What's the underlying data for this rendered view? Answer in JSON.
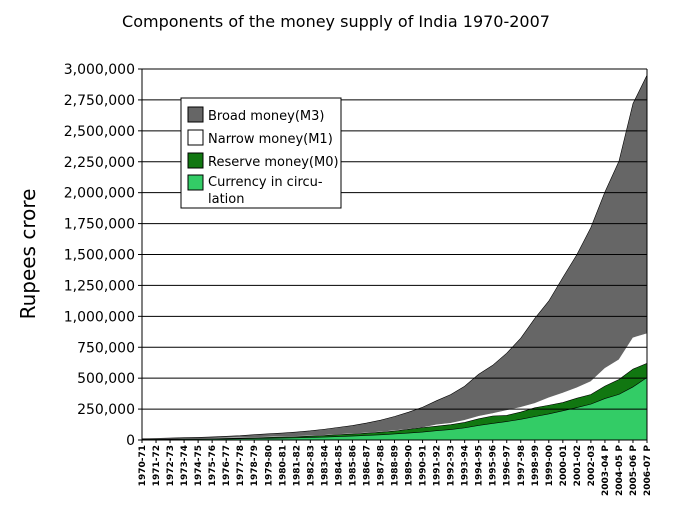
{
  "chart_data": {
    "type": "area",
    "title": "Components of the money supply of India 1970-2007",
    "ylabel": "Rupees crore",
    "xlabel": "",
    "ylim": [
      0,
      3000000
    ],
    "yticks": [
      "0",
      "250,000",
      "500,000",
      "750,000",
      "1,000,000",
      "1,250,000",
      "1,500,000",
      "1,750,000",
      "2,000,000",
      "2,250,000",
      "2,500,000",
      "2,750,000",
      "3,000,000"
    ],
    "ytick_values": [
      0,
      250000,
      500000,
      750000,
      1000000,
      1250000,
      1500000,
      1750000,
      2000000,
      2250000,
      2500000,
      2750000,
      3000000
    ],
    "grid": true,
    "legend_placement": "top-left",
    "categories": [
      "1970-71",
      "1971-72",
      "1972-73",
      "1973-74",
      "1974-75",
      "1975-76",
      "1976-77",
      "1977-78",
      "1978-79",
      "1979-80",
      "1980-81",
      "1981-82",
      "1982-83",
      "1983-84",
      "1984-85",
      "1985-86",
      "1986-87",
      "1987-88",
      "1988-89",
      "1989-90",
      "1990-91",
      "1991-92",
      "1992-93",
      "1993-94",
      "1994-95",
      "1995-96",
      "1996-97",
      "1997-98",
      "1998-99",
      "1999-00",
      "2000-01",
      "2001-02",
      "2002-03",
      "2003-04 P",
      "2004-05 P",
      "2005-06 P",
      "2006-07 P"
    ],
    "series": [
      {
        "name": "Broad money(M3)",
        "color": "#666666",
        "values": [
          11000,
          13000,
          16000,
          19000,
          21000,
          25000,
          30000,
          35000,
          43000,
          50000,
          56000,
          64000,
          74000,
          87000,
          102000,
          117000,
          137000,
          160000,
          190000,
          225000,
          265000,
          318000,
          367000,
          435000,
          532000,
          604000,
          702000,
          823000,
          983000,
          1124000,
          1314000,
          1499000,
          1718000,
          2005000,
          2254000,
          2720000,
          2950000
        ]
      },
      {
        "name": "Narrow money(M1)",
        "color": "#ffffff",
        "values": [
          7000,
          8000,
          9000,
          11000,
          12000,
          13000,
          16000,
          18000,
          21000,
          24000,
          27000,
          30000,
          33000,
          38000,
          45000,
          50000,
          57000,
          65000,
          75000,
          88000,
          100000,
          123000,
          135000,
          159000,
          192000,
          214000,
          239000,
          264000,
          296000,
          341000,
          380000,
          422000,
          473000,
          579000,
          649000,
          826000,
          860000
        ]
      },
      {
        "name": "Reserve money(M0)",
        "color": "#117711",
        "values": [
          6000,
          7000,
          8000,
          9000,
          10000,
          11000,
          13000,
          15000,
          18000,
          21000,
          24000,
          27000,
          31000,
          36000,
          43000,
          48000,
          55000,
          63000,
          72000,
          86000,
          100000,
          112000,
          124000,
          142000,
          171000,
          194000,
          199000,
          226000,
          260000,
          281000,
          303000,
          338000,
          368000,
          436000,
          489000,
          573000,
          620000
        ]
      },
      {
        "name": "Currency in circu-lation",
        "color": "#33cc66",
        "values": [
          4000,
          5000,
          6000,
          7000,
          7500,
          8000,
          9000,
          10000,
          12000,
          14000,
          16000,
          18000,
          21000,
          24000,
          28000,
          32000,
          37000,
          42000,
          49000,
          56000,
          64000,
          75000,
          84000,
          98000,
          118000,
          134000,
          149000,
          167000,
          189000,
          211000,
          236000,
          262000,
          290000,
          335000,
          369000,
          429000,
          505000
        ]
      }
    ]
  }
}
